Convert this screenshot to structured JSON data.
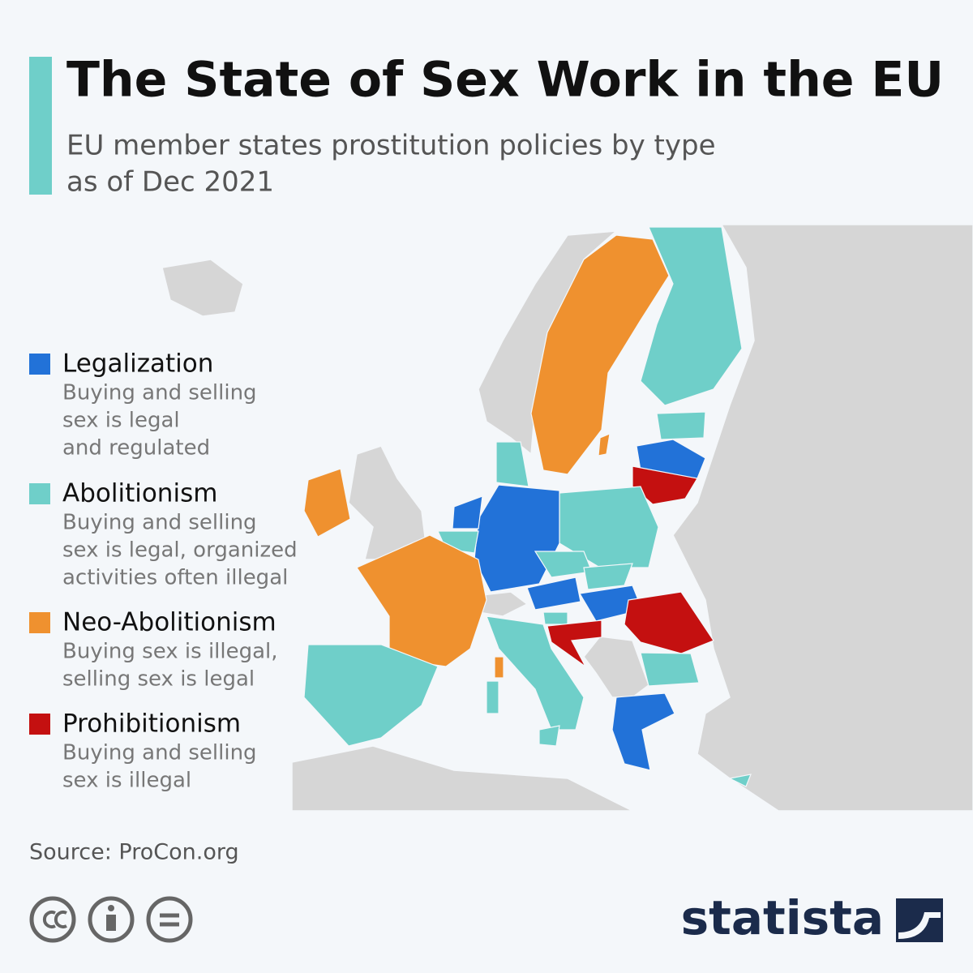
{
  "header": {
    "title": "The State of Sex Work in the EU",
    "subtitle_lines": [
      "EU member states prostitution policies by type",
      "as of Dec 2021"
    ]
  },
  "legend": {
    "items": [
      {
        "label": "Legalization",
        "color": "#2272d8",
        "description_lines": [
          "Buying and selling",
          "sex is legal",
          "and regulated"
        ]
      },
      {
        "label": "Abolitionism",
        "color": "#6fcfc9",
        "description_lines": [
          "Buying and selling",
          "sex is legal, organized",
          "activities often illegal"
        ]
      },
      {
        "label": "Neo-Abolitionism",
        "color": "#ef912f",
        "description_lines": [
          "Buying sex is illegal,",
          "selling sex is legal"
        ]
      },
      {
        "label": "Prohibitionism",
        "color": "#c41010",
        "description_lines": [
          "Buying and selling",
          "sex is illegal"
        ]
      }
    ]
  },
  "footer": {
    "source": "Source: ProCon.org",
    "brand": "statista"
  }
}
